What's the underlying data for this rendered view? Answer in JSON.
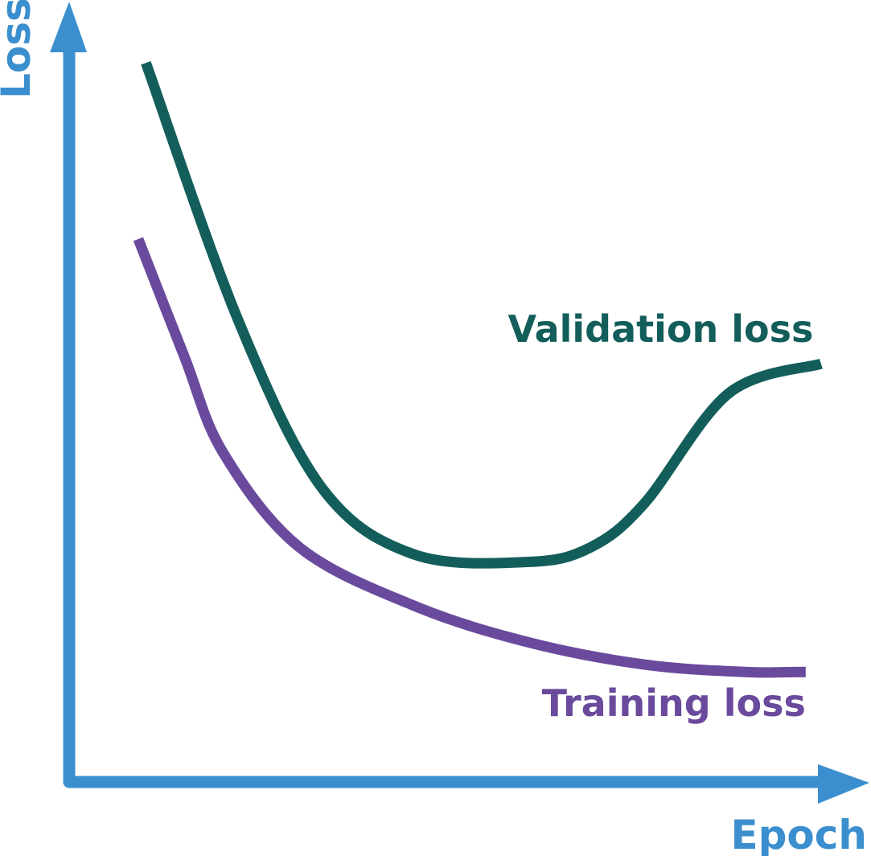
{
  "chart_data": {
    "type": "line",
    "title": "",
    "xlabel": "Epoch",
    "ylabel": "Loss",
    "xlim": [
      0,
      100
    ],
    "ylim": [
      0,
      100
    ],
    "grid": false,
    "legend": "inline-labels",
    "series": [
      {
        "name": "Validation loss",
        "color": "#135e5b",
        "points": [
          [
            10,
            98
          ],
          [
            22,
            63
          ],
          [
            33,
            40
          ],
          [
            45,
            31
          ],
          [
            60,
            30
          ],
          [
            68,
            32
          ],
          [
            75,
            38
          ],
          [
            86,
            53
          ],
          [
            98,
            57
          ]
        ],
        "label_anchor": [
          97,
          60
        ]
      },
      {
        "name": "Training loss",
        "color": "#6a4a9d",
        "points": [
          [
            9,
            74
          ],
          [
            15,
            58
          ],
          [
            20,
            45
          ],
          [
            30,
            32
          ],
          [
            45,
            24
          ],
          [
            60,
            19
          ],
          [
            75,
            16
          ],
          [
            88,
            15
          ],
          [
            96,
            15
          ]
        ],
        "label_anchor": [
          96,
          9
        ]
      }
    ],
    "axis_color": "#3b8fce"
  }
}
